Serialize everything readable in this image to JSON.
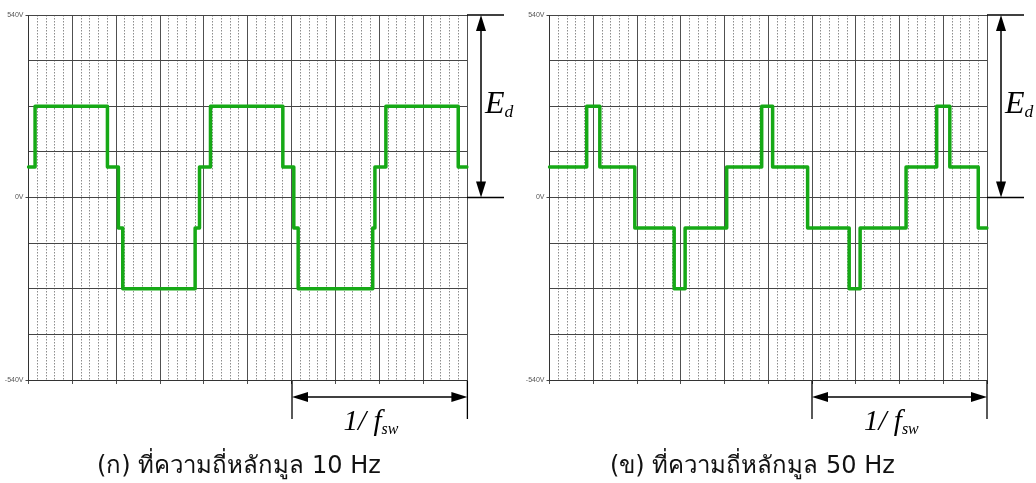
{
  "chart_data": [
    {
      "type": "step",
      "title": "(ก) ที่ความถี่หลักมูล 10 Hz",
      "categories": [
        null,
        null,
        null,
        null,
        null,
        null,
        null,
        null,
        null,
        null,
        null,
        null,
        null,
        null,
        null,
        null,
        null,
        null,
        null,
        null,
        null,
        null,
        null,
        null,
        null,
        null,
        null,
        null,
        null,
        null,
        null,
        null,
        null,
        null,
        null,
        null,
        null,
        null,
        null,
        null,
        null,
        null,
        null,
        null,
        null,
        null,
        null,
        null,
        null,
        null,
        null,
        null,
        null,
        null,
        null,
        null,
        null,
        null,
        null,
        null,
        null,
        null,
        null,
        null,
        null,
        null,
        null,
        null,
        null,
        null,
        null,
        null,
        null,
        null,
        null,
        null,
        null,
        null,
        null,
        null,
        null,
        null,
        null,
        null,
        null,
        null,
        null,
        null,
        null,
        null,
        null,
        null,
        null,
        null,
        null,
        null,
        null,
        null,
        null,
        null,
        null,
        null,
        null,
        null,
        null,
        null,
        null,
        null,
        null,
        null,
        null,
        null,
        null,
        null,
        null,
        null,
        null,
        null,
        null,
        null,
        null,
        null,
        null,
        null,
        null,
        null,
        null,
        null,
        null,
        null,
        null,
        null,
        null,
        null,
        null,
        null,
        null,
        null,
        null,
        null,
        null,
        null,
        null,
        null,
        null,
        null,
        null,
        null,
        null,
        null,
        null,
        null,
        null,
        null,
        null,
        null,
        null,
        null,
        null,
        null,
        null,
        null,
        null,
        null,
        null,
        null,
        null,
        null,
        null,
        null,
        null,
        null,
        null,
        null,
        null,
        null,
        null,
        null,
        null,
        null,
        null,
        null,
        null,
        null,
        null,
        null,
        null,
        null,
        null,
        null,
        null,
        null,
        null,
        null,
        null,
        null,
        null,
        null,
        null,
        null,
        null
      ],
      "values": [
        90,
        90,
        90,
        270,
        270,
        270,
        270,
        270,
        270,
        270,
        270,
        270,
        270,
        270,
        270,
        270,
        270,
        270,
        270,
        270,
        270,
        270,
        270,
        270,
        270,
        270,
        270,
        270,
        270,
        270,
        270,
        270,
        270,
        270,
        270,
        270,
        90,
        90,
        90,
        90,
        90,
        -90,
        -90,
        -270,
        -270,
        -270,
        -270,
        -270,
        -270,
        -270,
        -270,
        -270,
        -270,
        -270,
        -270,
        -270,
        -270,
        -270,
        -270,
        -270,
        -270,
        -270,
        -270,
        -270,
        -270,
        -270,
        -270,
        -270,
        -270,
        -270,
        -270,
        -270,
        -270,
        -270,
        -270,
        -270,
        -90,
        -90,
        90,
        90,
        90,
        90,
        90,
        270,
        270,
        270,
        270,
        270,
        270,
        270,
        270,
        270,
        270,
        270,
        270,
        270,
        270,
        270,
        270,
        270,
        270,
        270,
        270,
        270,
        270,
        270,
        270,
        270,
        270,
        270,
        270,
        270,
        270,
        270,
        270,
        270,
        90,
        90,
        90,
        90,
        90,
        -90,
        -90,
        -270,
        -270,
        -270,
        -270,
        -270,
        -270,
        -270,
        -270,
        -270,
        -270,
        -270,
        -270,
        -270,
        -270,
        -270,
        -270,
        -270,
        -270,
        -270,
        -270,
        -270,
        -270,
        -270,
        -270,
        -270,
        -270,
        -270,
        -270,
        -270,
        -270,
        -270,
        -270,
        -270,
        -270,
        -90,
        90,
        90,
        90,
        90,
        90,
        270,
        270,
        270,
        270,
        270,
        270,
        270,
        270,
        270,
        270,
        270,
        270,
        270,
        270,
        270,
        270,
        270,
        270,
        270,
        270,
        270,
        270,
        270,
        270,
        270,
        270,
        270,
        270,
        270,
        270,
        270,
        270,
        270,
        90,
        90,
        90,
        90,
        90
      ],
      "color": "#16a916",
      "ylim": [
        -540,
        540
      ],
      "yticks": [
        {
          "value": -540,
          "label": "-540V"
        },
        {
          "value": -405,
          "label": null
        },
        {
          "value": -270,
          "label": null
        },
        {
          "value": -135,
          "label": null
        },
        {
          "value": 0,
          "label": "0V"
        },
        {
          "value": 135,
          "label": null
        },
        {
          "value": 270,
          "label": null
        },
        {
          "value": 405,
          "label": null
        },
        {
          "value": 540,
          "label": "540V"
        }
      ],
      "grid": true,
      "annotations": [
        "E$_{d}$",
        "1/ f$_{sw}$"
      ]
    },
    {
      "type": "step",
      "title": "(ข) ที่ความถี่หลักมูล 50 Hz",
      "categories": [
        null,
        null,
        null,
        null,
        null,
        null,
        null,
        null,
        null,
        null,
        null,
        null,
        null,
        null,
        null,
        null,
        null,
        null,
        null,
        null,
        null,
        null,
        null,
        null,
        null,
        null,
        null,
        null,
        null,
        null,
        null,
        null,
        null,
        null,
        null,
        null,
        null,
        null,
        null,
        null,
        null,
        null,
        null,
        null,
        null,
        null,
        null,
        null,
        null,
        null,
        null,
        null,
        null,
        null,
        null,
        null,
        null,
        null,
        null,
        null,
        null,
        null,
        null,
        null,
        null,
        null,
        null,
        null,
        null,
        null,
        null,
        null,
        null,
        null,
        null,
        null,
        null,
        null,
        null,
        null,
        null,
        null,
        null,
        null,
        null,
        null,
        null,
        null,
        null,
        null,
        null,
        null,
        null,
        null,
        null,
        null,
        null,
        null,
        null,
        null,
        null,
        null,
        null,
        null,
        null,
        null,
        null,
        null,
        null,
        null,
        null,
        null,
        null,
        null,
        null,
        null,
        null,
        null,
        null,
        null,
        null,
        null,
        null,
        null,
        null,
        null,
        null,
        null,
        null,
        null,
        null,
        null,
        null,
        null,
        null,
        null,
        null,
        null,
        null,
        null,
        null,
        null,
        null,
        null,
        null,
        null,
        null,
        null,
        null,
        null,
        null,
        null,
        null,
        null,
        null,
        null,
        null,
        null,
        null,
        null,
        null,
        null,
        null,
        null,
        null,
        null,
        null,
        null,
        null,
        null,
        null,
        null,
        null,
        null,
        null,
        null,
        null,
        null,
        null,
        null,
        null,
        null,
        null,
        null,
        null,
        null,
        null,
        null,
        null,
        null,
        null,
        null,
        null,
        null,
        null,
        null,
        null,
        null,
        null,
        null,
        null
      ],
      "values": [
        90,
        90,
        90,
        90,
        90,
        90,
        90,
        90,
        90,
        90,
        90,
        90,
        90,
        90,
        90,
        90,
        90,
        270,
        270,
        270,
        270,
        270,
        270,
        90,
        90,
        90,
        90,
        90,
        90,
        90,
        90,
        90,
        90,
        90,
        90,
        90,
        90,
        90,
        90,
        -90,
        -90,
        -90,
        -90,
        -90,
        -90,
        -90,
        -90,
        -90,
        -90,
        -90,
        -90,
        -90,
        -90,
        -90,
        -90,
        -90,
        -90,
        -270,
        -270,
        -270,
        -270,
        -270,
        -90,
        -90,
        -90,
        -90,
        -90,
        -90,
        -90,
        -90,
        -90,
        -90,
        -90,
        -90,
        -90,
        -90,
        -90,
        -90,
        -90,
        -90,
        -90,
        90,
        90,
        90,
        90,
        90,
        90,
        90,
        90,
        90,
        90,
        90,
        90,
        90,
        90,
        90,
        90,
        270,
        270,
        270,
        270,
        270,
        90,
        90,
        90,
        90,
        90,
        90,
        90,
        90,
        90,
        90,
        90,
        90,
        90,
        90,
        90,
        90,
        -90,
        -90,
        -90,
        -90,
        -90,
        -90,
        -90,
        -90,
        -90,
        -90,
        -90,
        -90,
        -90,
        -90,
        -90,
        -90,
        -90,
        -90,
        -90,
        -270,
        -270,
        -270,
        -270,
        -270,
        -90,
        -90,
        -90,
        -90,
        -90,
        -90,
        -90,
        -90,
        -90,
        -90,
        -90,
        -90,
        -90,
        -90,
        -90,
        -90,
        -90,
        -90,
        -90,
        -90,
        -90,
        90,
        90,
        90,
        90,
        90,
        90,
        90,
        90,
        90,
        90,
        90,
        90,
        90,
        90,
        270,
        270,
        270,
        270,
        270,
        270,
        90,
        90,
        90,
        90,
        90,
        90,
        90,
        90,
        90,
        90,
        90,
        90,
        90,
        -90,
        -90,
        -90,
        -90,
        -90
      ],
      "color": "#16a916",
      "ylim": [
        -540,
        540
      ],
      "yticks": [
        {
          "value": -540,
          "label": "-540V"
        },
        {
          "value": -405,
          "label": null
        },
        {
          "value": -270,
          "label": null
        },
        {
          "value": -135,
          "label": null
        },
        {
          "value": 0,
          "label": "0V"
        },
        {
          "value": 135,
          "label": null
        },
        {
          "value": 270,
          "label": null
        },
        {
          "value": 405,
          "label": null
        },
        {
          "value": 540,
          "label": "540V"
        }
      ],
      "grid": true,
      "annotations": [
        "E$_{d}$",
        "1/ f$_{sw}$"
      ]
    }
  ]
}
